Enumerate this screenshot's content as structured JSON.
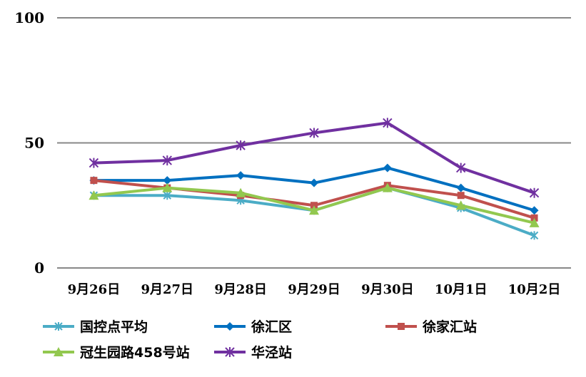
{
  "chart_data": {
    "type": "line",
    "categories": [
      "9月26日",
      "9月27日",
      "9月28日",
      "9月29日",
      "9月30日",
      "10月1日",
      "10月2日"
    ],
    "ylim": [
      0,
      100
    ],
    "yticks": [
      0,
      50,
      100
    ],
    "grid": true,
    "legend_placement": "bottom",
    "series": [
      {
        "name": "国控点平均",
        "color": "#4bacc6",
        "marker": "x",
        "values": [
          29,
          29,
          27,
          23,
          32,
          24,
          13
        ]
      },
      {
        "name": "徐汇区",
        "color": "#0070c0",
        "marker": "diamond",
        "values": [
          35,
          35,
          37,
          34,
          40,
          32,
          23
        ]
      },
      {
        "name": "徐家汇站",
        "color": "#c0504d",
        "marker": "square",
        "values": [
          35,
          32,
          29,
          25,
          33,
          29,
          20
        ]
      },
      {
        "name": "冠生园路458号站",
        "color": "#92c84f",
        "marker": "triangle",
        "values": [
          29,
          32,
          30,
          23,
          32,
          25,
          18
        ]
      },
      {
        "name": "华泾站",
        "color": "#7030a0",
        "marker": "star",
        "values": [
          42,
          43,
          49,
          54,
          58,
          40,
          30
        ]
      }
    ]
  }
}
